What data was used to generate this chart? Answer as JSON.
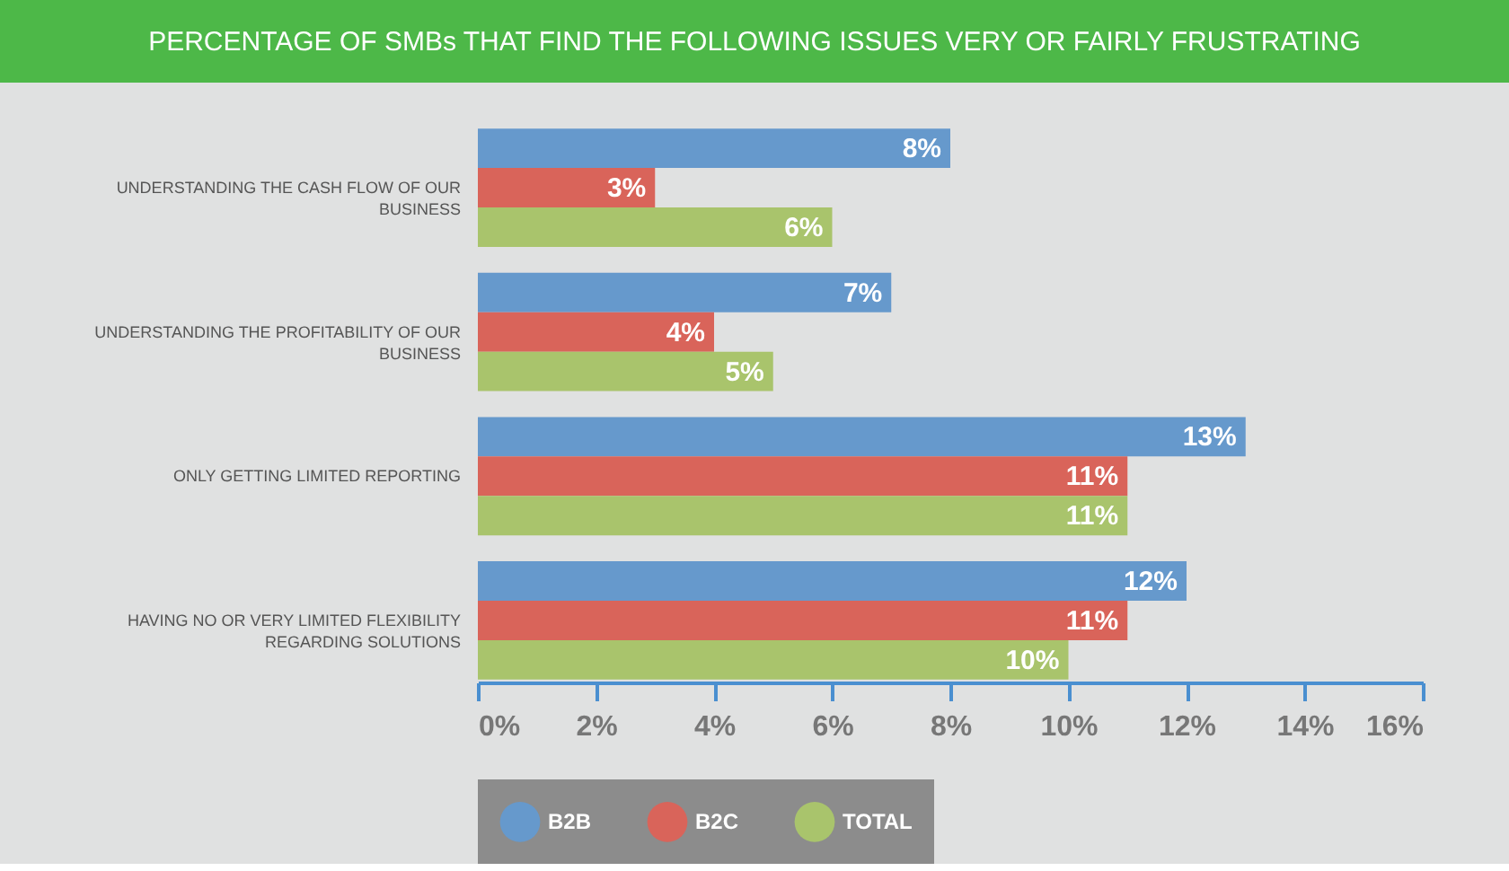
{
  "chart_data": {
    "type": "bar",
    "orientation": "horizontal",
    "title": "PERCENTAGE OF SMBs THAT FIND THE FOLLOWING ISSUES VERY OR FAIRLY FRUSTRATING",
    "categories": [
      "UNDERSTANDING THE CASH FLOW OF OUR BUSINESS",
      "UNDERSTANDING THE PROFITABILITY OF OUR BUSINESS",
      "ONLY GETTING LIMITED REPORTING",
      "HAVING NO OR VERY LIMITED FLEXIBILITY REGARDING SOLUTIONS"
    ],
    "series": [
      {
        "name": "B2B",
        "color": "#6699cc",
        "values": [
          8,
          7,
          13,
          12
        ],
        "value_labels": [
          "8%",
          "7%",
          "13%",
          "12%"
        ]
      },
      {
        "name": "B2C",
        "color": "#d9645a",
        "values": [
          3,
          4,
          11,
          11
        ],
        "value_labels": [
          "3%",
          "4%",
          "11%",
          "11%"
        ]
      },
      {
        "name": "TOTAL",
        "color": "#a9c46c",
        "values": [
          6,
          5,
          11,
          10
        ],
        "value_labels": [
          "6%",
          "5%",
          "11%",
          "10%"
        ]
      }
    ],
    "xlim": [
      0,
      16
    ],
    "xticks": [
      {
        "value": 0,
        "label": "0%"
      },
      {
        "value": 2,
        "label": "2%"
      },
      {
        "value": 4,
        "label": "4%"
      },
      {
        "value": 6,
        "label": "6%"
      },
      {
        "value": 8,
        "label": "8%"
      },
      {
        "value": 10,
        "label": "10%"
      },
      {
        "value": 12,
        "label": "12%"
      },
      {
        "value": 14,
        "label": "14%"
      },
      {
        "value": 16,
        "label": "16%"
      }
    ],
    "legend": "bottom"
  }
}
